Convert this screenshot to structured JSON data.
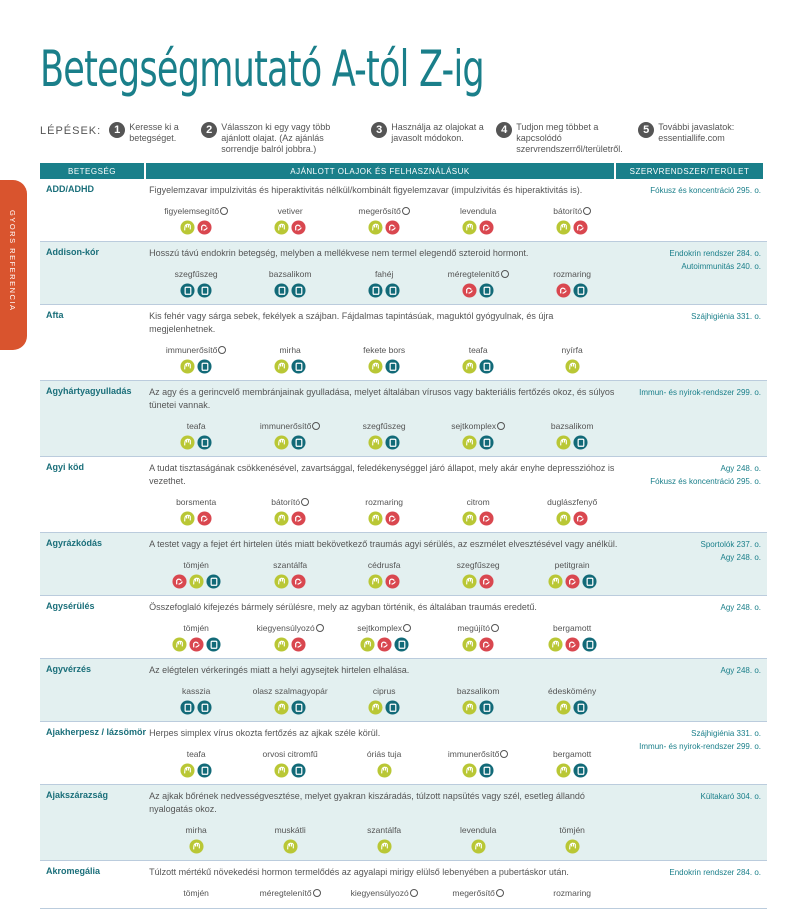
{
  "header": {
    "title": "Betegségmutató A-tól Z-ig"
  },
  "steps": {
    "label": "LÉPÉSEK:",
    "items": [
      {
        "number": "1",
        "text": "Keresse ki a betegséget."
      },
      {
        "number": "2",
        "text": "Válasszon ki egy vagy több ajánlott olajat. (Az ajánlás sorrendje balról jobbra.)"
      },
      {
        "number": "3",
        "text": "Használja az olajokat a javasolt módokon."
      },
      {
        "number": "4",
        "text": "Tudjon meg többet a kapcsolódó szervrendszerről/területről."
      },
      {
        "number": "5",
        "text": "További javaslatok: essentiallife.com"
      }
    ]
  },
  "side_tab": "GYORS REFERENCIA",
  "table": {
    "columns": [
      "BETEGSÉG",
      "AJÁNLOTT OLAJOK ÉS FELHASZNÁLÁSUK",
      "SZERVRENDSZER/TERÜLET"
    ],
    "rows": [
      {
        "name": "ADD/ADHD",
        "description": "Figyelemzavar impulzivitás és hiperaktivitás nélkül/kombinált figyelemzavar (impulzivitás és hiperaktivitás is).",
        "oils": [
          "figyelemsegítő",
          "vetiver",
          "megerősítő",
          "levendula",
          "bátorító"
        ],
        "refs": [
          "Fókusz és koncentráció 295. o."
        ]
      },
      {
        "name": "Addison-kór",
        "description": "Hosszú távú endokrin betegség, melyben a mellékvese nem termel elegendő szteroid hormont.",
        "oils": [
          "szegfűszeg",
          "bazsalikom",
          "fahéj",
          "méregtelenítő",
          "rozmaring"
        ],
        "refs": [
          "Endokrin rendszer 284. o.",
          "Autoimmunitás 240. o."
        ]
      },
      {
        "name": "Afta",
        "description": "Kis fehér vagy sárga sebek, fekélyek a szájban. Fájdalmas tapintásúak, maguktól gyógyulnak, és újra megjelenhetnek.",
        "oils": [
          "immunerősítő",
          "mirha",
          "fekete bors",
          "teafa",
          "nyírfa"
        ],
        "refs": [
          "Szájhigiénia 331. o."
        ]
      },
      {
        "name": "Agyhártyagyulladás",
        "description": "Az agy és a gerincvelő membránjainak gyulladása, melyet általában vírusos vagy bakteriális fertőzés okoz, és súlyos tünetei vannak.",
        "oils": [
          "teafa",
          "immunerősítő",
          "szegfűszeg",
          "sejtkomplex",
          "bazsalikom"
        ],
        "refs": [
          "Immun- és nyirok-rendszer 299. o."
        ]
      },
      {
        "name": "Agyi köd",
        "description": "A tudat tisztaságának csökkenésével, zavartsággal, feledékenységgel járó állapot, mely akár enyhe depresszióhoz is vezethet.",
        "oils": [
          "borsmenta",
          "bátorító",
          "rozmaring",
          "citrom",
          "duglászfenyő"
        ],
        "refs": [
          "Agy 248. o.",
          "Fókusz és koncentráció 295. o."
        ]
      },
      {
        "name": "Agyrázkódás",
        "description": "A testet vagy a fejet ért hirtelen ütés miatt bekövetkező traumás agyi sérülés, az eszmélet elvesztésével vagy anélkül.",
        "oils": [
          "tömjén",
          "szantálfa",
          "cédrusfa",
          "szegfűszeg",
          "petitgrain"
        ],
        "refs": [
          "Sportolók 237. o.",
          "Agy 248. o."
        ]
      },
      {
        "name": "Agysérülés",
        "description": "Összefoglaló kifejezés bármely sérülésre, mely az agyban történik, és általában traumás eredetű.",
        "oils": [
          "tömjén",
          "kiegyensúlyozó",
          "sejtkomplex",
          "megújító",
          "bergamott"
        ],
        "refs": [
          "Agy 248. o."
        ]
      },
      {
        "name": "Agyvérzés",
        "description": "Az elégtelen vérkeringés miatt a helyi agysejtek hirtelen elhalása.",
        "oils": [
          "kasszia",
          "olasz szalmagyopár",
          "ciprus",
          "bazsalikom",
          "édeskömény"
        ],
        "refs": [
          "Agy 248. o."
        ]
      },
      {
        "name": "Ajakherpesz / lázsömör",
        "description": "Herpes simplex vírus okozta fertőzés az ajkak széle körül.",
        "oils": [
          "teafa",
          "orvosi citromfű",
          "óriás tuja",
          "immunerősítő",
          "bergamott"
        ],
        "refs": [
          "Szájhigiénia 331. o.",
          "Immun- és nyirok-rendszer 299. o."
        ]
      },
      {
        "name": "Ajakszárazság",
        "description": "Az ajkak bőrének nedvességvesztése, melyet gyakran kiszáradás, túlzott napsütés vagy szél, esetleg állandó nyalogatás okoz.",
        "oils": [
          "mirha",
          "muskátli",
          "szantálfa",
          "levendula",
          "tömjén"
        ],
        "refs": [
          "Kültakaró 304. o."
        ]
      },
      {
        "name": "Akromegália",
        "description": "Túlzott mértékű növekedési hormon termelődés az agyalapi mirigy elülső lebenyében a pubertáskor után.",
        "oils": [
          "tömjén",
          "méregtelenítő",
          "kiegyensúlyozó",
          "megerősítő",
          "rozmaring"
        ],
        "refs": [
          "Endokrin rendszer 284. o."
        ]
      }
    ]
  }
}
